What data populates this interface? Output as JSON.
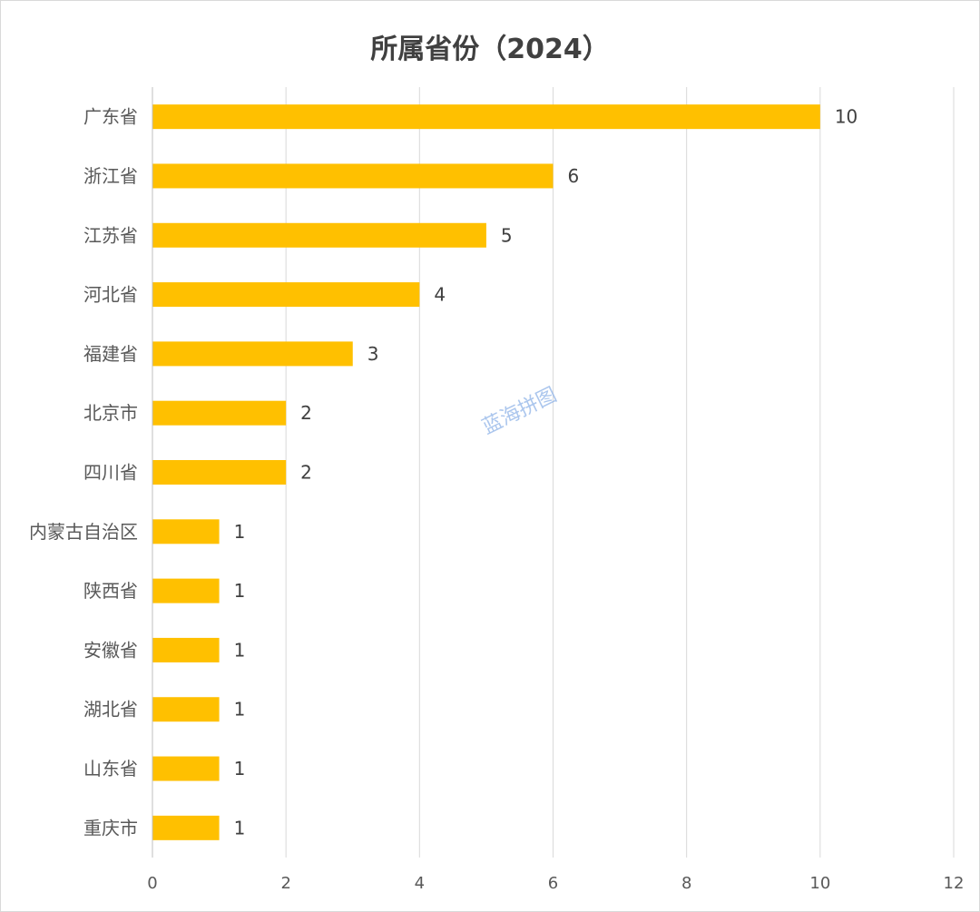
{
  "watermark": "蓝海拼图",
  "colors": {
    "bar": "#FFC000",
    "grid": "#D9D9D9",
    "axis": "#BFBFBF"
  },
  "chart_data": {
    "type": "bar",
    "orientation": "horizontal",
    "title": "所属省份（2024）",
    "xlabel": "",
    "ylabel": "",
    "categories": [
      "广东省",
      "浙江省",
      "江苏省",
      "河北省",
      "福建省",
      "北京市",
      "四川省",
      "内蒙古自治区",
      "陕西省",
      "安徽省",
      "湖北省",
      "山东省",
      "重庆市"
    ],
    "values": [
      10,
      6,
      5,
      4,
      3,
      2,
      2,
      1,
      1,
      1,
      1,
      1,
      1
    ],
    "xlim": [
      0,
      12
    ],
    "xticks": [
      0,
      2,
      4,
      6,
      8,
      10,
      12
    ],
    "grid": true,
    "legend": "none",
    "data_labels": true
  }
}
